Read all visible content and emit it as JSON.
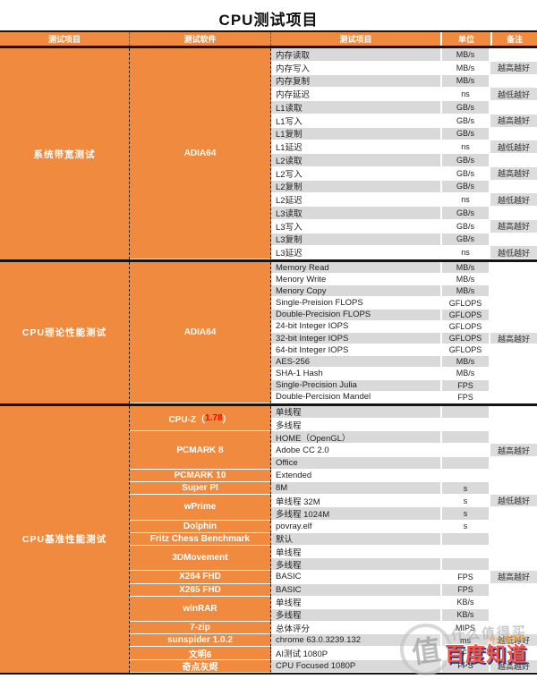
{
  "title": "CPU测试项目",
  "header": {
    "cols": [
      "测试项目",
      "测试软件",
      "测试项目",
      "单位",
      "备注"
    ]
  },
  "sections": [
    {
      "category": "系统带宽测试",
      "software": [
        {
          "prefix": "ADIA64",
          "highlight": "",
          "suffix": "",
          "rows": 16
        }
      ],
      "rows": [
        {
          "item": "内存读取",
          "unit": "MB/s",
          "remark": ""
        },
        {
          "item": "内存写入",
          "unit": "MB/s",
          "remark": "越高越好"
        },
        {
          "item": "内存复制",
          "unit": "MB/s",
          "remark": ""
        },
        {
          "item": "内存延迟",
          "unit": "ns",
          "remark": "越低越好"
        },
        {
          "item": "L1读取",
          "unit": "GB/s",
          "remark": ""
        },
        {
          "item": "L1写入",
          "unit": "GB/s",
          "remark": "越高越好"
        },
        {
          "item": "L1复制",
          "unit": "GB/s",
          "remark": ""
        },
        {
          "item": "L1延迟",
          "unit": "ns",
          "remark": "越低越好"
        },
        {
          "item": "L2读取",
          "unit": "GB/s",
          "remark": ""
        },
        {
          "item": "L2写入",
          "unit": "GB/s",
          "remark": "越高越好"
        },
        {
          "item": "L2复制",
          "unit": "GB/s",
          "remark": ""
        },
        {
          "item": "L2延迟",
          "unit": "ns",
          "remark": "越低越好"
        },
        {
          "item": "L3读取",
          "unit": "GB/s",
          "remark": ""
        },
        {
          "item": "L3写入",
          "unit": "GB/s",
          "remark": "越高越好"
        },
        {
          "item": "L3复制",
          "unit": "GB/s",
          "remark": ""
        },
        {
          "item": "L3延迟",
          "unit": "ns",
          "remark": "越低越好"
        }
      ]
    },
    {
      "category": "CPU理论性能测试",
      "software": [
        {
          "prefix": "ADIA64",
          "highlight": "",
          "suffix": "",
          "rows": 12
        }
      ],
      "rows": [
        {
          "item": "Memory Read",
          "unit": "MB/s",
          "remark": ""
        },
        {
          "item": "Menory Write",
          "unit": "MB/s",
          "remark": ""
        },
        {
          "item": "Menory Copy",
          "unit": "MB/s",
          "remark": ""
        },
        {
          "item": "Single-Preision FLOPS",
          "unit": "GFLOPS",
          "remark": ""
        },
        {
          "item": "Double-Precision FLOPS",
          "unit": "GFLOPS",
          "remark": ""
        },
        {
          "item": "24-bit Integer IOPS",
          "unit": "GFLOPS",
          "remark": ""
        },
        {
          "item": "32-bit Integer IOPS",
          "unit": "GFLOPS",
          "remark": "越高越好"
        },
        {
          "item": "64-bit Integer IOPS",
          "unit": "GFLOPS",
          "remark": ""
        },
        {
          "item": "AES-256",
          "unit": "MB/s",
          "remark": ""
        },
        {
          "item": "SHA-1 Hash",
          "unit": "MB/s",
          "remark": ""
        },
        {
          "item": "Single-Precision Julia",
          "unit": "FPS",
          "remark": ""
        },
        {
          "item": "Double-Percision Mandel",
          "unit": "FPS",
          "remark": ""
        }
      ]
    },
    {
      "category": "CPU基准性能测试",
      "software": [
        {
          "prefix": "CPU-Z（",
          "highlight": "1.78",
          "suffix": "）",
          "rows": 2
        },
        {
          "prefix": "PCMARK 8",
          "highlight": "",
          "suffix": "",
          "rows": 3
        },
        {
          "prefix": "PCMARK 10",
          "highlight": "",
          "suffix": "",
          "rows": 1
        },
        {
          "prefix": "Super PI",
          "highlight": "",
          "suffix": "",
          "rows": 1
        },
        {
          "prefix": "wPrime",
          "highlight": "",
          "suffix": "",
          "rows": 2
        },
        {
          "prefix": "Dolphin",
          "highlight": "",
          "suffix": "",
          "rows": 1
        },
        {
          "prefix": "Fritz Chess Benchmark",
          "highlight": "",
          "suffix": "",
          "rows": 1
        },
        {
          "prefix": "3DMovement",
          "highlight": "",
          "suffix": "",
          "rows": 2
        },
        {
          "prefix": "X264 FHD",
          "highlight": "",
          "suffix": "",
          "rows": 1
        },
        {
          "prefix": "X265 FHD",
          "highlight": "",
          "suffix": "",
          "rows": 1
        },
        {
          "prefix": "winRAR",
          "highlight": "",
          "suffix": "",
          "rows": 2
        },
        {
          "prefix": "7-zip",
          "highlight": "",
          "suffix": "",
          "rows": 1
        },
        {
          "prefix": "sunspider 1.0.2",
          "highlight": "",
          "suffix": "",
          "rows": 1
        },
        {
          "prefix": "文明6",
          "highlight": "",
          "suffix": "",
          "rows": 1
        },
        {
          "prefix": "奇点灰烬",
          "highlight": "",
          "suffix": "",
          "rows": 1
        }
      ],
      "rows": [
        {
          "item": "单线程",
          "unit": "",
          "remark": ""
        },
        {
          "item": "多线程",
          "unit": "",
          "remark": ""
        },
        {
          "item": "HOME（OpenGL）",
          "unit": "",
          "remark": ""
        },
        {
          "item": "Adobe CC 2.0",
          "unit": "",
          "remark": "越高越好"
        },
        {
          "item": "Office",
          "unit": "",
          "remark": ""
        },
        {
          "item": "Extended",
          "unit": "",
          "remark": ""
        },
        {
          "item": "8M",
          "unit": "s",
          "remark": ""
        },
        {
          "item": "单线程 32M",
          "unit": "s",
          "remark": "越低越好"
        },
        {
          "item": "多线程 1024M",
          "unit": "s",
          "remark": ""
        },
        {
          "item": "povray.elf",
          "unit": "s",
          "remark": ""
        },
        {
          "item": "默认",
          "unit": "",
          "remark": ""
        },
        {
          "item": "单线程",
          "unit": "",
          "remark": ""
        },
        {
          "item": "多线程",
          "unit": "",
          "remark": ""
        },
        {
          "item": "BASIC",
          "unit": "FPS",
          "remark": "越高越好"
        },
        {
          "item": "BASIC",
          "unit": "FPS",
          "remark": ""
        },
        {
          "item": "单线程",
          "unit": "KB/s",
          "remark": ""
        },
        {
          "item": "多线程",
          "unit": "KB/s",
          "remark": ""
        },
        {
          "item": "总体评分",
          "unit": "MIPS",
          "remark": ""
        },
        {
          "item": "chrome 63.0.3239.132",
          "unit": "ms",
          "remark": "越低越好"
        },
        {
          "item": "AI测试 1080P",
          "unit": "FPS",
          "remark": ""
        },
        {
          "item": "CPU Focused 1080P",
          "unit": "FPS",
          "remark": "越高越好"
        }
      ]
    }
  ],
  "watermark": {
    "logo_char": "值",
    "ghost_text": "什么值得买",
    "small_text": "什么值得买",
    "brand_text": "百度知道"
  },
  "colors": {
    "orange": "#ef8a3e",
    "row_gray": "#d9d9d9",
    "highlight_red": "#ff0000",
    "brand_red": "#ff4633",
    "brand_navy": "#16377e"
  }
}
